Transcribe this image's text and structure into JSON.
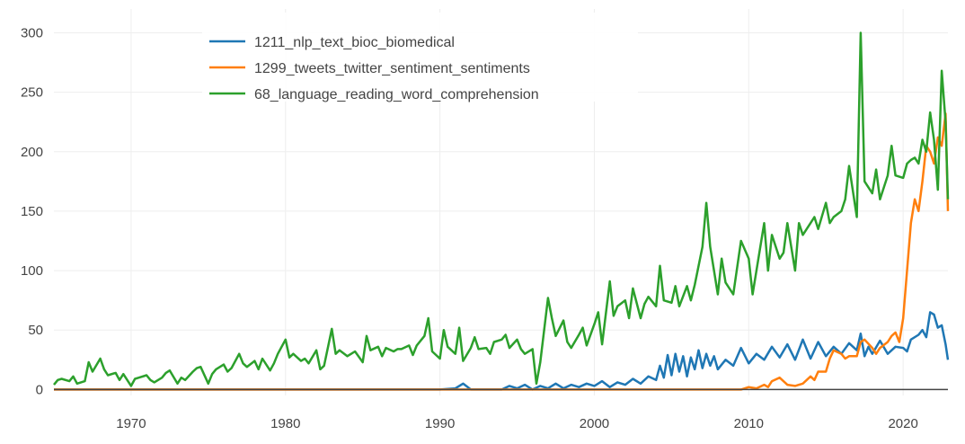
{
  "chart_data": {
    "type": "line",
    "title": "",
    "xlabel": "",
    "ylabel": "",
    "xlim": [
      1965,
      2022.9
    ],
    "ylim": [
      -5,
      320
    ],
    "x_ticks": [
      1970,
      1980,
      1990,
      2000,
      2010,
      2020
    ],
    "y_ticks": [
      0,
      50,
      100,
      150,
      200,
      250,
      300
    ],
    "grid": true,
    "legend_position": "top-left",
    "series": [
      {
        "name": "1211_nlp_text_bioc_biomedical",
        "color": "#1f77b4",
        "points": [
          [
            1965,
            0
          ],
          [
            1990,
            0
          ],
          [
            1991,
            1
          ],
          [
            1991.5,
            5
          ],
          [
            1992,
            0
          ],
          [
            1994,
            0
          ],
          [
            1994.5,
            3
          ],
          [
            1995,
            1
          ],
          [
            1995.5,
            4
          ],
          [
            1996,
            0
          ],
          [
            1996.5,
            3
          ],
          [
            1997,
            1
          ],
          [
            1997.5,
            5
          ],
          [
            1998,
            1
          ],
          [
            1998.5,
            4
          ],
          [
            1999,
            2
          ],
          [
            1999.5,
            5
          ],
          [
            2000,
            3
          ],
          [
            2000.5,
            7
          ],
          [
            2001,
            2
          ],
          [
            2001.5,
            6
          ],
          [
            2002,
            4
          ],
          [
            2002.5,
            9
          ],
          [
            2003,
            5
          ],
          [
            2003.5,
            11
          ],
          [
            2004,
            8
          ],
          [
            2004.25,
            20
          ],
          [
            2004.5,
            10
          ],
          [
            2004.75,
            29
          ],
          [
            2005,
            12
          ],
          [
            2005.25,
            30
          ],
          [
            2005.5,
            15
          ],
          [
            2005.75,
            28
          ],
          [
            2006,
            11
          ],
          [
            2006.25,
            27
          ],
          [
            2006.5,
            17
          ],
          [
            2006.75,
            33
          ],
          [
            2007,
            18
          ],
          [
            2007.25,
            30
          ],
          [
            2007.5,
            20
          ],
          [
            2007.75,
            28
          ],
          [
            2008,
            17
          ],
          [
            2008.5,
            25
          ],
          [
            2009,
            20
          ],
          [
            2009.5,
            35
          ],
          [
            2010,
            22
          ],
          [
            2010.5,
            30
          ],
          [
            2011,
            25
          ],
          [
            2011.5,
            36
          ],
          [
            2012,
            27
          ],
          [
            2012.5,
            38
          ],
          [
            2013,
            25
          ],
          [
            2013.5,
            42
          ],
          [
            2014,
            26
          ],
          [
            2014.5,
            40
          ],
          [
            2015,
            28
          ],
          [
            2015.5,
            36
          ],
          [
            2016,
            30
          ],
          [
            2016.5,
            39
          ],
          [
            2017,
            33
          ],
          [
            2017.25,
            47
          ],
          [
            2017.5,
            28
          ],
          [
            2017.75,
            36
          ],
          [
            2018,
            30
          ],
          [
            2018.5,
            41
          ],
          [
            2019,
            30
          ],
          [
            2019.5,
            36
          ],
          [
            2020,
            35
          ],
          [
            2020.25,
            32
          ],
          [
            2020.5,
            42
          ],
          [
            2021,
            46
          ],
          [
            2021.25,
            50
          ],
          [
            2021.5,
            44
          ],
          [
            2021.75,
            65
          ],
          [
            2022,
            63
          ],
          [
            2022.25,
            52
          ],
          [
            2022.5,
            54
          ],
          [
            2022.75,
            38
          ],
          [
            2022.9,
            25
          ]
        ]
      },
      {
        "name": "1299_tweets_twitter_sentiment_sentiments",
        "color": "#ff7f0e",
        "points": [
          [
            1965,
            0
          ],
          [
            2009.5,
            0
          ],
          [
            2010,
            2
          ],
          [
            2010.5,
            1
          ],
          [
            2011,
            4
          ],
          [
            2011.25,
            2
          ],
          [
            2011.5,
            7
          ],
          [
            2012,
            10
          ],
          [
            2012.5,
            4
          ],
          [
            2013,
            3
          ],
          [
            2013.5,
            5
          ],
          [
            2014,
            11
          ],
          [
            2014.25,
            8
          ],
          [
            2014.5,
            15
          ],
          [
            2015,
            15
          ],
          [
            2015.25,
            26
          ],
          [
            2015.5,
            33
          ],
          [
            2016,
            30
          ],
          [
            2016.25,
            26
          ],
          [
            2016.5,
            28
          ],
          [
            2017,
            28
          ],
          [
            2017.25,
            40
          ],
          [
            2017.5,
            42
          ],
          [
            2018,
            35
          ],
          [
            2018.25,
            30
          ],
          [
            2018.5,
            35
          ],
          [
            2019,
            40
          ],
          [
            2019.25,
            45
          ],
          [
            2019.5,
            48
          ],
          [
            2019.75,
            40
          ],
          [
            2020,
            60
          ],
          [
            2020.25,
            100
          ],
          [
            2020.5,
            140
          ],
          [
            2020.75,
            160
          ],
          [
            2021,
            150
          ],
          [
            2021.25,
            175
          ],
          [
            2021.5,
            205
          ],
          [
            2021.75,
            200
          ],
          [
            2022,
            190
          ],
          [
            2022.25,
            212
          ],
          [
            2022.5,
            205
          ],
          [
            2022.75,
            232
          ],
          [
            2022.9,
            150
          ]
        ]
      },
      {
        "name": "68_language_reading_word_comprehension",
        "color": "#2ca02c",
        "points": [
          [
            1965,
            4
          ],
          [
            1965.25,
            8
          ],
          [
            1965.5,
            9
          ],
          [
            1966,
            7
          ],
          [
            1966.25,
            11
          ],
          [
            1966.5,
            5
          ],
          [
            1967,
            7
          ],
          [
            1967.25,
            23
          ],
          [
            1967.5,
            15
          ],
          [
            1968,
            26
          ],
          [
            1968.25,
            17
          ],
          [
            1968.5,
            12
          ],
          [
            1969,
            14
          ],
          [
            1969.25,
            8
          ],
          [
            1969.5,
            13
          ],
          [
            1970,
            3
          ],
          [
            1970.25,
            9
          ],
          [
            1970.5,
            10
          ],
          [
            1971,
            12
          ],
          [
            1971.25,
            8
          ],
          [
            1971.5,
            6
          ],
          [
            1972,
            10
          ],
          [
            1972.25,
            14
          ],
          [
            1972.5,
            16
          ],
          [
            1973,
            5
          ],
          [
            1973.25,
            10
          ],
          [
            1973.5,
            8
          ],
          [
            1974,
            15
          ],
          [
            1974.25,
            18
          ],
          [
            1974.5,
            19
          ],
          [
            1975,
            5
          ],
          [
            1975.25,
            13
          ],
          [
            1975.5,
            17
          ],
          [
            1976,
            21
          ],
          [
            1976.25,
            15
          ],
          [
            1976.5,
            18
          ],
          [
            1977,
            30
          ],
          [
            1977.25,
            22
          ],
          [
            1977.5,
            19
          ],
          [
            1978,
            24
          ],
          [
            1978.25,
            17
          ],
          [
            1978.5,
            26
          ],
          [
            1979,
            16
          ],
          [
            1979.25,
            22
          ],
          [
            1979.5,
            30
          ],
          [
            1980,
            42
          ],
          [
            1980.25,
            27
          ],
          [
            1980.5,
            30
          ],
          [
            1981,
            24
          ],
          [
            1981.25,
            26
          ],
          [
            1981.5,
            22
          ],
          [
            1982,
            33
          ],
          [
            1982.25,
            17
          ],
          [
            1982.5,
            20
          ],
          [
            1983,
            51
          ],
          [
            1983.25,
            30
          ],
          [
            1983.5,
            33
          ],
          [
            1984,
            28
          ],
          [
            1984.25,
            30
          ],
          [
            1984.5,
            32
          ],
          [
            1985,
            23
          ],
          [
            1985.25,
            45
          ],
          [
            1985.5,
            33
          ],
          [
            1986,
            36
          ],
          [
            1986.25,
            28
          ],
          [
            1986.5,
            35
          ],
          [
            1987,
            32
          ],
          [
            1987.25,
            34
          ],
          [
            1987.5,
            34
          ],
          [
            1988,
            37
          ],
          [
            1988.25,
            29
          ],
          [
            1988.5,
            37
          ],
          [
            1989,
            45
          ],
          [
            1989.25,
            60
          ],
          [
            1989.5,
            32
          ],
          [
            1990,
            26
          ],
          [
            1990.25,
            50
          ],
          [
            1990.5,
            36
          ],
          [
            1991,
            30
          ],
          [
            1991.25,
            52
          ],
          [
            1991.5,
            24
          ],
          [
            1992,
            35
          ],
          [
            1992.25,
            44
          ],
          [
            1992.5,
            34
          ],
          [
            1993,
            35
          ],
          [
            1993.25,
            30
          ],
          [
            1993.5,
            40
          ],
          [
            1994,
            42
          ],
          [
            1994.25,
            46
          ],
          [
            1994.5,
            35
          ],
          [
            1995,
            42
          ],
          [
            1995.25,
            34
          ],
          [
            1995.5,
            30
          ],
          [
            1996,
            34
          ],
          [
            1996.25,
            5
          ],
          [
            1996.5,
            23
          ],
          [
            1997,
            77
          ],
          [
            1997.25,
            60
          ],
          [
            1997.5,
            45
          ],
          [
            1998,
            58
          ],
          [
            1998.25,
            40
          ],
          [
            1998.5,
            35
          ],
          [
            1999,
            46
          ],
          [
            1999.25,
            52
          ],
          [
            1999.5,
            37
          ],
          [
            2000,
            55
          ],
          [
            2000.25,
            65
          ],
          [
            2000.5,
            38
          ],
          [
            2001,
            91
          ],
          [
            2001.25,
            62
          ],
          [
            2001.5,
            70
          ],
          [
            2002,
            75
          ],
          [
            2002.25,
            60
          ],
          [
            2002.5,
            85
          ],
          [
            2003,
            60
          ],
          [
            2003.25,
            72
          ],
          [
            2003.5,
            78
          ],
          [
            2004,
            70
          ],
          [
            2004.25,
            104
          ],
          [
            2004.5,
            75
          ],
          [
            2005,
            73
          ],
          [
            2005.25,
            87
          ],
          [
            2005.5,
            70
          ],
          [
            2006,
            87
          ],
          [
            2006.25,
            75
          ],
          [
            2006.5,
            88
          ],
          [
            2007,
            120
          ],
          [
            2007.25,
            157
          ],
          [
            2007.5,
            120
          ],
          [
            2008,
            80
          ],
          [
            2008.25,
            110
          ],
          [
            2008.5,
            90
          ],
          [
            2009,
            80
          ],
          [
            2009.5,
            125
          ],
          [
            2010,
            110
          ],
          [
            2010.25,
            80
          ],
          [
            2010.5,
            100
          ],
          [
            2011,
            140
          ],
          [
            2011.25,
            100
          ],
          [
            2011.5,
            130
          ],
          [
            2012,
            110
          ],
          [
            2012.25,
            115
          ],
          [
            2012.5,
            140
          ],
          [
            2013,
            100
          ],
          [
            2013.25,
            140
          ],
          [
            2013.5,
            130
          ],
          [
            2014,
            140
          ],
          [
            2014.25,
            145
          ],
          [
            2014.5,
            135
          ],
          [
            2015,
            157
          ],
          [
            2015.25,
            140
          ],
          [
            2015.5,
            145
          ],
          [
            2016,
            150
          ],
          [
            2016.25,
            160
          ],
          [
            2016.5,
            188
          ],
          [
            2017,
            145
          ],
          [
            2017.25,
            300
          ],
          [
            2017.5,
            175
          ],
          [
            2018,
            165
          ],
          [
            2018.25,
            185
          ],
          [
            2018.5,
            160
          ],
          [
            2019,
            180
          ],
          [
            2019.25,
            205
          ],
          [
            2019.5,
            180
          ],
          [
            2020,
            178
          ],
          [
            2020.25,
            190
          ],
          [
            2020.5,
            193
          ],
          [
            2020.75,
            195
          ],
          [
            2021,
            190
          ],
          [
            2021.25,
            210
          ],
          [
            2021.5,
            200
          ],
          [
            2021.75,
            233
          ],
          [
            2022,
            210
          ],
          [
            2022.25,
            168
          ],
          [
            2022.5,
            268
          ],
          [
            2022.75,
            225
          ],
          [
            2022.9,
            160
          ]
        ]
      }
    ]
  }
}
